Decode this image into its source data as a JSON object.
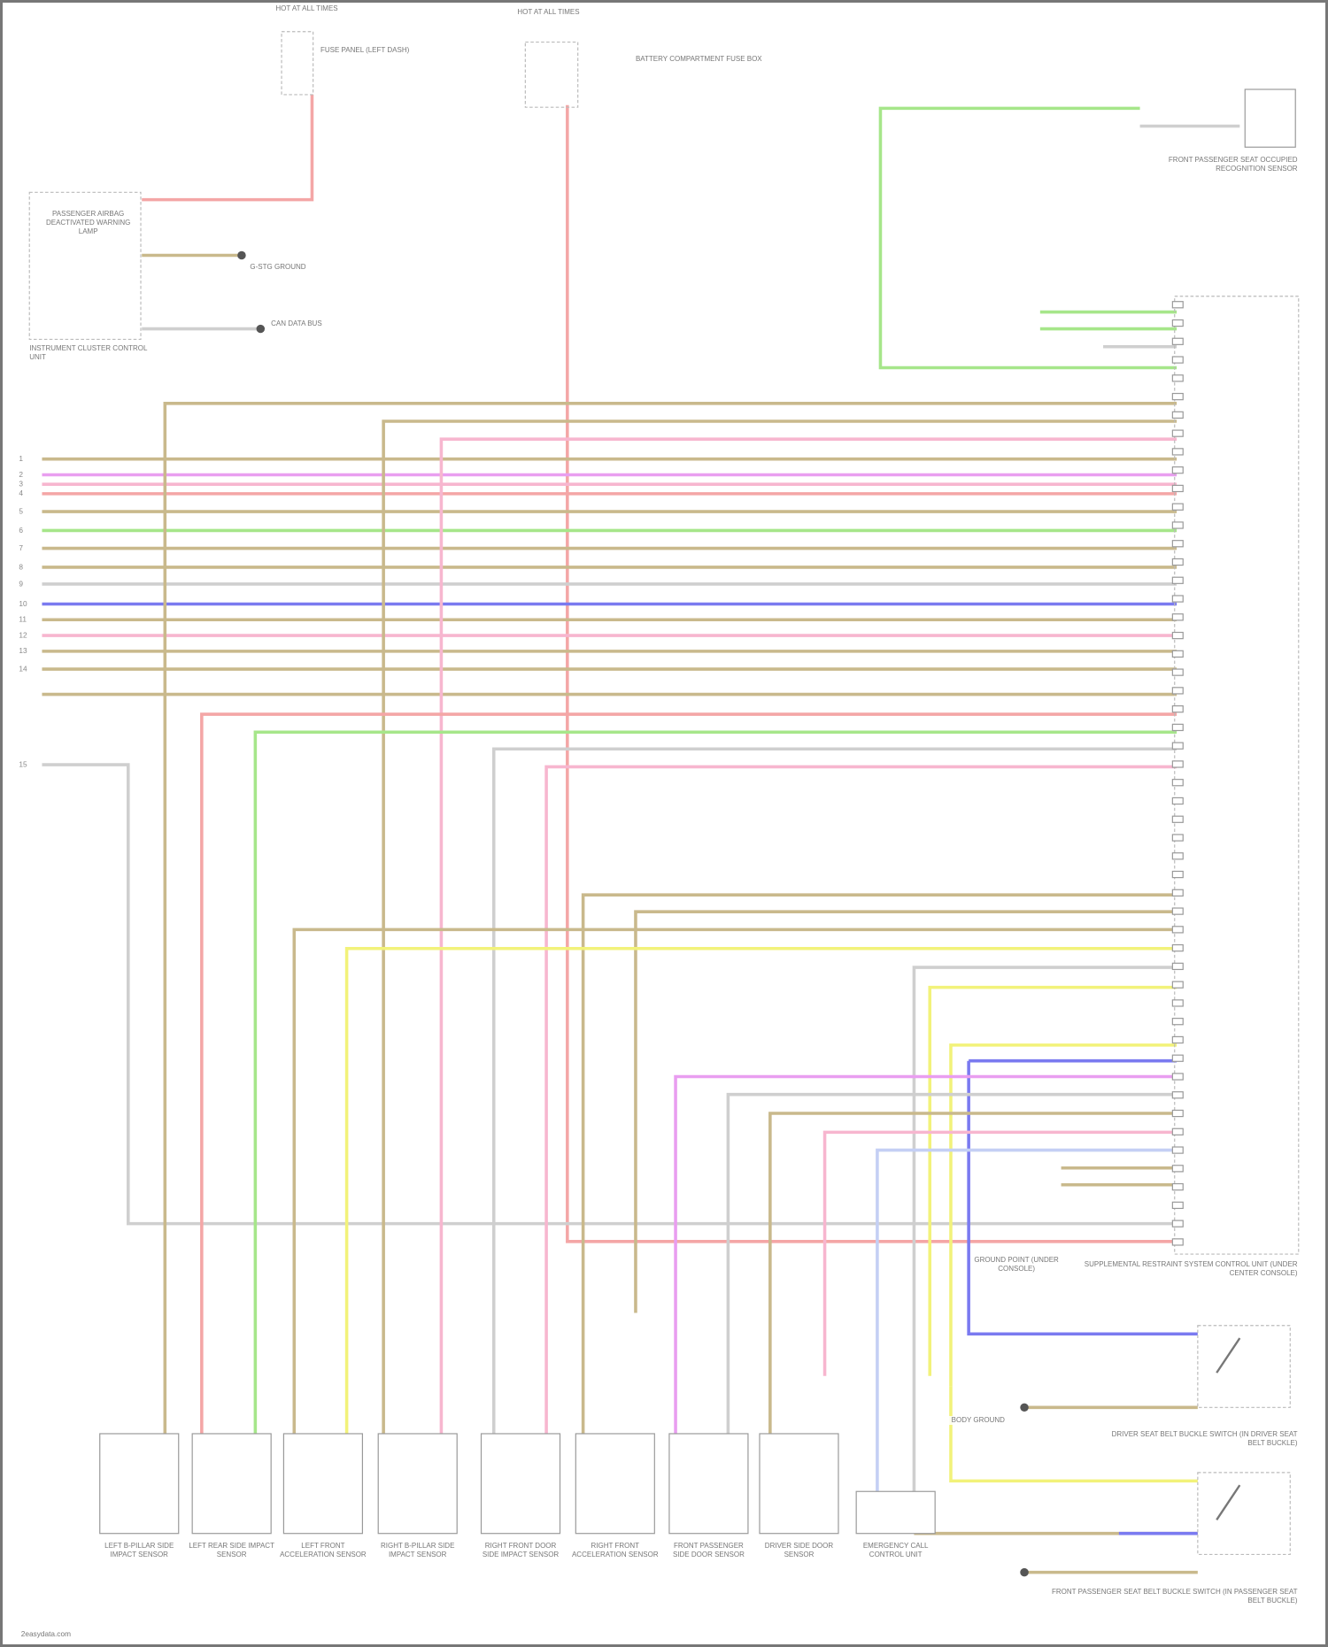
{
  "diagram": {
    "components": {
      "hot_at_all_times": "HOT AT ALL TIMES",
      "fuse_top": "FUSE PANEL (LEFT DASH)",
      "battery_fuse": "BATTERY COMPARTMENT FUSE BOX",
      "driver_seat_sensor": "FRONT PASSENGER SEAT OCCUPIED RECOGNITION SENSOR",
      "instrument_panel": "INSTRUMENT CLUSTER CONTROL UNIT",
      "airbag_lamp": "PASSENGER AIRBAG DEACTIVATED WARNING LAMP",
      "ground_left": "G-STG GROUND",
      "data_bus": "CAN DATA BUS",
      "srs_unit": "SUPPLEMENTAL RESTRAINT SYSTEM CONTROL UNIT (UNDER CENTER CONSOLE)",
      "ground_under": "GROUND POINT (UNDER CONSOLE)",
      "driver_buckle": "DRIVER SEAT BELT BUCKLE SWITCH (IN DRIVER SEAT BELT BUCKLE)",
      "passenger_buckle": "FRONT PASSENGER SEAT BELT BUCKLE SWITCH (IN PASSENGER SEAT BELT BUCKLE)",
      "ground_body": "BODY GROUND",
      "sensors": [
        "LEFT B-PILLAR SIDE IMPACT SENSOR",
        "LEFT REAR SIDE IMPACT SENSOR",
        "LEFT FRONT ACCELERATION SENSOR",
        "RIGHT B-PILLAR SIDE IMPACT SENSOR",
        "RIGHT FRONT DOOR SIDE IMPACT SENSOR",
        "RIGHT FRONT ACCELERATION SENSOR",
        "FRONT PASSENGER SIDE DOOR SENSOR",
        "DRIVER SIDE DOOR SENSOR",
        "EMERGENCY CALL CONTROL UNIT"
      ]
    },
    "left_numbers": [
      "1",
      "2",
      "3",
      "4",
      "5",
      "6",
      "7",
      "8",
      "9",
      "10",
      "11",
      "12",
      "13",
      "14",
      "15"
    ],
    "wire_colors": {
      "red": "#f4a6a6",
      "brown": "#c9b98c",
      "pink": "#f7b6cf",
      "magenta": "#e99ef0",
      "green": "#a6e68a",
      "blue": "#7a7af0",
      "yellow": "#f2f27a",
      "grey": "#cfcfcf",
      "lightblue": "#c4cff4"
    },
    "footer": "2easydata.com"
  }
}
